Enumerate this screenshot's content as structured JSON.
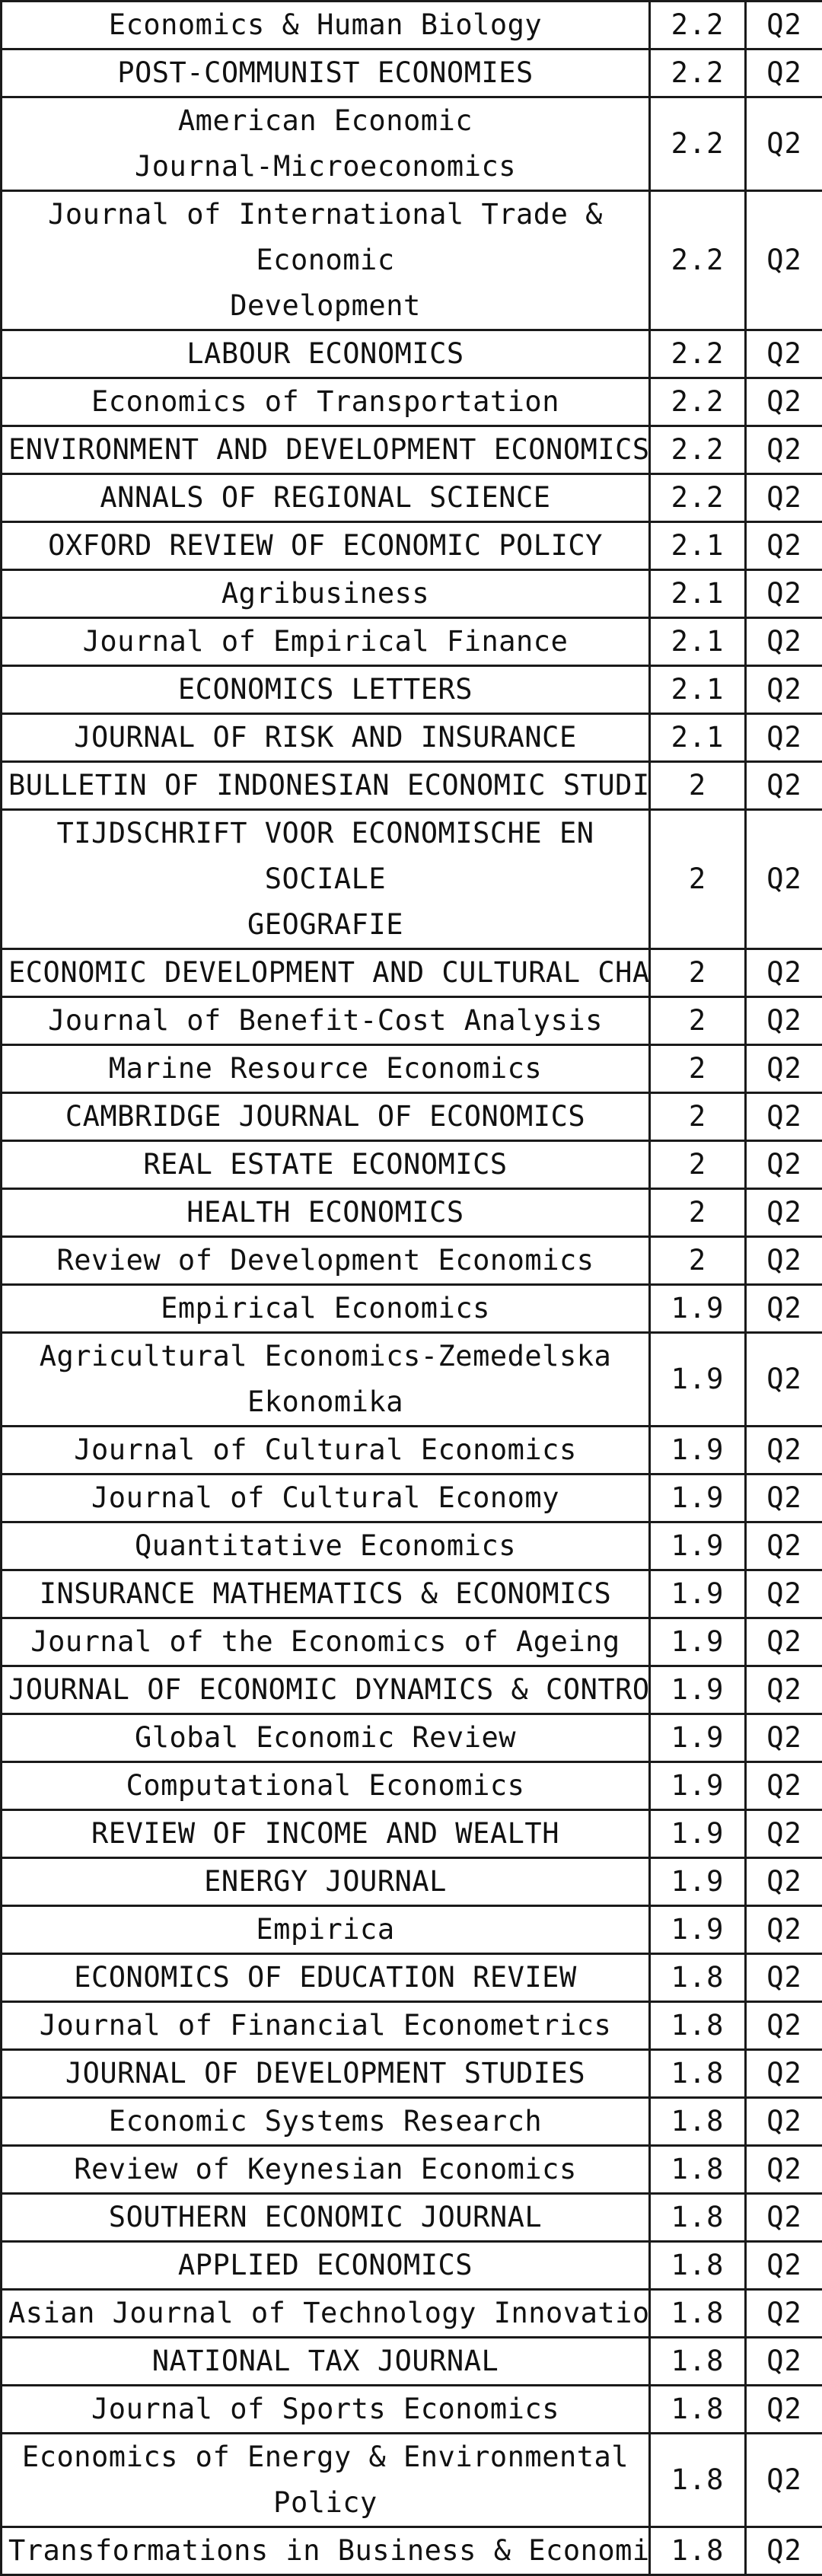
{
  "table": {
    "rows": [
      {
        "name": "Economics & Human Biology",
        "impact": "2.2",
        "quartile": "Q2"
      },
      {
        "name": "POST-COMMUNIST ECONOMIES",
        "impact": "2.2",
        "quartile": "Q2"
      },
      {
        "name": "American Economic\nJournal-Microeconomics",
        "impact": "2.2",
        "quartile": "Q2"
      },
      {
        "name": "Journal of International Trade & Economic\nDevelopment",
        "impact": "2.2",
        "quartile": "Q2"
      },
      {
        "name": "LABOUR ECONOMICS",
        "impact": "2.2",
        "quartile": "Q2"
      },
      {
        "name": "Economics of Transportation",
        "impact": "2.2",
        "quartile": "Q2"
      },
      {
        "name": "ENVIRONMENT AND DEVELOPMENT ECONOMICS",
        "impact": "2.2",
        "quartile": "Q2"
      },
      {
        "name": "ANNALS OF REGIONAL SCIENCE",
        "impact": "2.2",
        "quartile": "Q2"
      },
      {
        "name": "OXFORD REVIEW OF ECONOMIC POLICY",
        "impact": "2.1",
        "quartile": "Q2"
      },
      {
        "name": "Agribusiness",
        "impact": "2.1",
        "quartile": "Q2"
      },
      {
        "name": "Journal of Empirical Finance",
        "impact": "2.1",
        "quartile": "Q2"
      },
      {
        "name": "ECONOMICS LETTERS",
        "impact": "2.1",
        "quartile": "Q2"
      },
      {
        "name": "JOURNAL OF RISK AND INSURANCE",
        "impact": "2.1",
        "quartile": "Q2"
      },
      {
        "name": "BULLETIN OF INDONESIAN ECONOMIC STUDIES",
        "impact": "2",
        "quartile": "Q2"
      },
      {
        "name": "TIJDSCHRIFT VOOR ECONOMISCHE EN SOCIALE\nGEOGRAFIE",
        "impact": "2",
        "quartile": "Q2"
      },
      {
        "name": "ECONOMIC DEVELOPMENT AND CULTURAL CHANGE",
        "impact": "2",
        "quartile": "Q2"
      },
      {
        "name": "Journal of Benefit-Cost Analysis",
        "impact": "2",
        "quartile": "Q2"
      },
      {
        "name": "Marine Resource Economics",
        "impact": "2",
        "quartile": "Q2"
      },
      {
        "name": "CAMBRIDGE JOURNAL OF ECONOMICS",
        "impact": "2",
        "quartile": "Q2"
      },
      {
        "name": "REAL ESTATE ECONOMICS",
        "impact": "2",
        "quartile": "Q2"
      },
      {
        "name": "HEALTH ECONOMICS",
        "impact": "2",
        "quartile": "Q2"
      },
      {
        "name": "Review of Development Economics",
        "impact": "2",
        "quartile": "Q2"
      },
      {
        "name": "Empirical Economics",
        "impact": "1.9",
        "quartile": "Q2"
      },
      {
        "name": "Agricultural Economics-Zemedelska\nEkonomika",
        "impact": "1.9",
        "quartile": "Q2"
      },
      {
        "name": "Journal of Cultural Economics",
        "impact": "1.9",
        "quartile": "Q2"
      },
      {
        "name": "Journal of Cultural Economy",
        "impact": "1.9",
        "quartile": "Q2"
      },
      {
        "name": "Quantitative Economics",
        "impact": "1.9",
        "quartile": "Q2"
      },
      {
        "name": "INSURANCE MATHEMATICS & ECONOMICS",
        "impact": "1.9",
        "quartile": "Q2"
      },
      {
        "name": "Journal of the Economics of Ageing",
        "impact": "1.9",
        "quartile": "Q2"
      },
      {
        "name": "JOURNAL OF ECONOMIC DYNAMICS & CONTROL",
        "impact": "1.9",
        "quartile": "Q2"
      },
      {
        "name": "Global Economic Review",
        "impact": "1.9",
        "quartile": "Q2"
      },
      {
        "name": "Computational Economics",
        "impact": "1.9",
        "quartile": "Q2"
      },
      {
        "name": "REVIEW OF INCOME AND WEALTH",
        "impact": "1.9",
        "quartile": "Q2"
      },
      {
        "name": "ENERGY JOURNAL",
        "impact": "1.9",
        "quartile": "Q2"
      },
      {
        "name": "Empirica",
        "impact": "1.9",
        "quartile": "Q2"
      },
      {
        "name": "ECONOMICS OF EDUCATION REVIEW",
        "impact": "1.8",
        "quartile": "Q2"
      },
      {
        "name": "Journal of Financial Econometrics",
        "impact": "1.8",
        "quartile": "Q2"
      },
      {
        "name": "JOURNAL OF DEVELOPMENT STUDIES",
        "impact": "1.8",
        "quartile": "Q2"
      },
      {
        "name": "Economic Systems Research",
        "impact": "1.8",
        "quartile": "Q2"
      },
      {
        "name": "Review of Keynesian Economics",
        "impact": "1.8",
        "quartile": "Q2"
      },
      {
        "name": "SOUTHERN ECONOMIC JOURNAL",
        "impact": "1.8",
        "quartile": "Q2"
      },
      {
        "name": "APPLIED ECONOMICS",
        "impact": "1.8",
        "quartile": "Q2"
      },
      {
        "name": "Asian Journal of Technology Innovation",
        "impact": "1.8",
        "quartile": "Q2"
      },
      {
        "name": "NATIONAL TAX JOURNAL",
        "impact": "1.8",
        "quartile": "Q2"
      },
      {
        "name": "Journal of Sports Economics",
        "impact": "1.8",
        "quartile": "Q2"
      },
      {
        "name": "Economics of Energy & Environmental\nPolicy",
        "impact": "1.8",
        "quartile": "Q2"
      },
      {
        "name": "Transformations in Business & Economics",
        "impact": "1.8",
        "quartile": "Q2"
      }
    ]
  }
}
